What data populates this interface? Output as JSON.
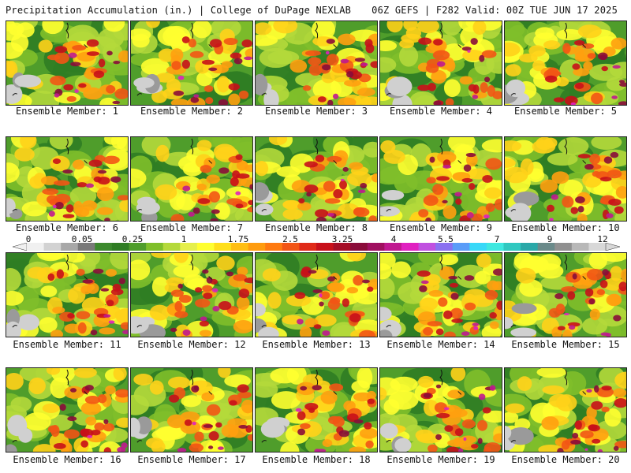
{
  "header": {
    "title": "Precipitation Accumulation (in.) | College of DuPage NEXLAB",
    "run_info": "06Z GEFS | F282 Valid: 00Z TUE JUN 17 2025"
  },
  "colorbar": {
    "tick_labels": [
      "0",
      "0.05",
      "0.25",
      "1",
      "1.75",
      "2.5",
      "3.25",
      "4",
      "5.5",
      "7",
      "9",
      "12"
    ],
    "colors": [
      "#f0f0f0",
      "#d2d2d2",
      "#a8a8a8",
      "#7a7a7a",
      "#3c8a2e",
      "#2f7d24",
      "#4f9d2b",
      "#7fbf2a",
      "#b4d93b",
      "#e5ef4b",
      "#ffff30",
      "#ffdf1a",
      "#ffbe12",
      "#ff9c0e",
      "#ff7a10",
      "#f25515",
      "#e02a18",
      "#c8101a",
      "#a50d26",
      "#8a0c3a",
      "#a01060",
      "#c01890",
      "#e020c0",
      "#c050e0",
      "#8a70f0",
      "#5a9cf8",
      "#38d8f8",
      "#3fe8e0",
      "#30c8c0",
      "#2aa8a8",
      "#6a8a8a",
      "#909090",
      "#b8b8b8",
      "#d8d8d8"
    ]
  },
  "map_palette": [
    "#d0d0d0",
    "#9a9a9a",
    "#2f7d24",
    "#4f9d2b",
    "#7fbf2a",
    "#b4d93b",
    "#ffff30",
    "#ffd21a",
    "#ffa010",
    "#f25515",
    "#c8101a",
    "#8a0c3a",
    "#c01890",
    "#e020c0",
    "#38d8f8"
  ],
  "members": [
    {
      "id": 1,
      "label": "Ensemble Member: 1",
      "intensity": 0.55
    },
    {
      "id": 2,
      "label": "Ensemble Member: 2",
      "intensity": 0.6
    },
    {
      "id": 3,
      "label": "Ensemble Member: 3",
      "intensity": 0.65
    },
    {
      "id": 4,
      "label": "Ensemble Member: 4",
      "intensity": 0.4
    },
    {
      "id": 5,
      "label": "Ensemble Member: 5",
      "intensity": 0.55
    },
    {
      "id": 6,
      "label": "Ensemble Member: 6",
      "intensity": 0.6
    },
    {
      "id": 7,
      "label": "Ensemble Member: 7",
      "intensity": 0.6
    },
    {
      "id": 8,
      "label": "Ensemble Member: 8",
      "intensity": 0.55
    },
    {
      "id": 9,
      "label": "Ensemble Member: 9",
      "intensity": 0.65
    },
    {
      "id": 10,
      "label": "Ensemble Member: 10",
      "intensity": 0.5
    },
    {
      "id": 11,
      "label": "Ensemble Member: 11",
      "intensity": 0.55
    },
    {
      "id": 12,
      "label": "Ensemble Member: 12",
      "intensity": 0.7
    },
    {
      "id": 13,
      "label": "Ensemble Member: 13",
      "intensity": 0.55
    },
    {
      "id": 14,
      "label": "Ensemble Member: 14",
      "intensity": 0.65
    },
    {
      "id": 15,
      "label": "Ensemble Member: 15",
      "intensity": 0.7
    },
    {
      "id": 16,
      "label": "Ensemble Member: 16",
      "intensity": 0.6
    },
    {
      "id": 17,
      "label": "Ensemble Member: 17",
      "intensity": 0.55
    },
    {
      "id": 18,
      "label": "Ensemble Member: 18",
      "intensity": 0.6
    },
    {
      "id": 19,
      "label": "Ensemble Member: 19",
      "intensity": 0.75
    },
    {
      "id": 20,
      "label": "Ensemble Member: 20",
      "intensity": 0.55
    }
  ]
}
